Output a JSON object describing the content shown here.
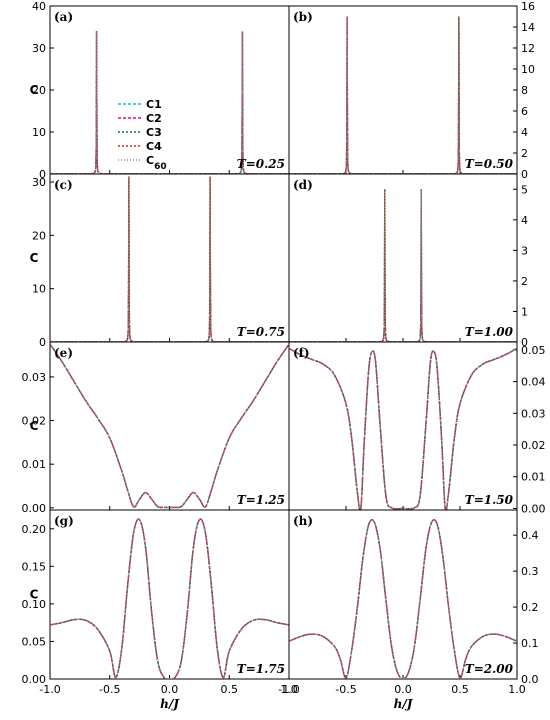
{
  "chart_data": {
    "type": "line",
    "xlabel_parts": [
      "h",
      "/",
      "J"
    ],
    "ylabel": "C",
    "xlim": [
      -1.0,
      1.0
    ],
    "x_ticks": [
      "-1.0",
      "-0.5",
      "0.0",
      "0.5",
      "1.0"
    ],
    "legend": {
      "placement": "panel (a), left-center",
      "entries": [
        {
          "name": "C1",
          "color": "#00bfe6",
          "dash": "3,2"
        },
        {
          "name": "C2",
          "color": "#e6009b",
          "dash": "3,2"
        },
        {
          "name": "C3",
          "color": "#0a7a2a",
          "dash": "2,2"
        },
        {
          "name": "C4",
          "color": "#d42a2a",
          "dash": "2,2"
        },
        {
          "name": "C",
          "subscript": "60",
          "color": "#8a8a8a",
          "dash": "1,2"
        }
      ]
    },
    "panels": [
      {
        "label": "(a)",
        "T": "T=0.25",
        "ylim": [
          0,
          40
        ],
        "yticks": [
          0,
          10,
          20,
          30,
          40
        ],
        "yaxis_side": "left",
        "peaks": [
          {
            "x": -0.61,
            "height": 34
          },
          {
            "x": 0.61,
            "height": 34
          }
        ]
      },
      {
        "label": "(b)",
        "T": "T=0.50",
        "ylim": [
          0,
          16
        ],
        "yticks": [
          0,
          2,
          4,
          6,
          8,
          10,
          12,
          14,
          16
        ],
        "yaxis_side": "right",
        "peaks": [
          {
            "x": -0.49,
            "height": 15
          },
          {
            "x": 0.49,
            "height": 15
          }
        ]
      },
      {
        "label": "(c)",
        "T": "T=0.75",
        "ylim": [
          0,
          31.5
        ],
        "yticks": [
          0,
          10,
          20,
          30
        ],
        "yaxis_side": "left",
        "peaks": [
          {
            "x": -0.34,
            "height": 31
          },
          {
            "x": 0.34,
            "height": 31
          }
        ]
      },
      {
        "label": "(d)",
        "T": "T=1.00",
        "ylim": [
          0,
          5.5
        ],
        "yticks": [
          0,
          1,
          2,
          3,
          4,
          5
        ],
        "yaxis_side": "right",
        "peaks": [
          {
            "x": -0.16,
            "height": 5
          },
          {
            "x": 0.16,
            "height": 5
          }
        ]
      },
      {
        "label": "(e)",
        "T": "T=1.25",
        "ylim": [
          -0.0005,
          0.038
        ],
        "yticks": [
          0.0,
          0.01,
          0.02,
          0.03
        ],
        "ytick_labels": [
          "0.00",
          "0.01",
          "0.02",
          "0.03"
        ],
        "yaxis_side": "left",
        "x": [
          -1.0,
          -0.9,
          -0.8,
          -0.7,
          -0.6,
          -0.5,
          -0.4,
          -0.35,
          -0.3,
          -0.25,
          -0.2,
          -0.15,
          -0.1,
          -0.05,
          0.0,
          0.05,
          0.1,
          0.15,
          0.2,
          0.25,
          0.3,
          0.35,
          0.4,
          0.5,
          0.6,
          0.7,
          0.8,
          0.9,
          1.0
        ],
        "y": [
          0.0375,
          0.0335,
          0.029,
          0.0245,
          0.0205,
          0.016,
          0.0085,
          0.004,
          0.0002,
          0.002,
          0.0035,
          0.002,
          0.0003,
          0.0001,
          0.0001,
          0.0001,
          0.0003,
          0.002,
          0.0035,
          0.002,
          0.0002,
          0.004,
          0.0085,
          0.016,
          0.0205,
          0.0245,
          0.029,
          0.0335,
          0.0375
        ]
      },
      {
        "label": "(f)",
        "T": "T=1.50",
        "ylim": [
          -0.0005,
          0.0525
        ],
        "yticks": [
          0.0,
          0.01,
          0.02,
          0.03,
          0.04,
          0.05
        ],
        "ytick_labels": [
          "0.00",
          "0.01",
          "0.02",
          "0.03",
          "0.04",
          "0.05"
        ],
        "yaxis_side": "right",
        "x": [
          -1.0,
          -0.9,
          -0.8,
          -0.7,
          -0.6,
          -0.5,
          -0.45,
          -0.4,
          -0.37,
          -0.34,
          -0.3,
          -0.27,
          -0.24,
          -0.2,
          -0.15,
          -0.1,
          0.0,
          0.1,
          0.15,
          0.2,
          0.24,
          0.27,
          0.3,
          0.34,
          0.37,
          0.4,
          0.45,
          0.5,
          0.6,
          0.7,
          0.8,
          0.9,
          1.0
        ],
        "y": [
          0.0505,
          0.0485,
          0.047,
          0.0455,
          0.042,
          0.033,
          0.022,
          0.005,
          0.0,
          0.021,
          0.044,
          0.0495,
          0.046,
          0.026,
          0.004,
          0.0002,
          0.0,
          0.0002,
          0.004,
          0.026,
          0.046,
          0.0495,
          0.044,
          0.021,
          0.0,
          0.005,
          0.022,
          0.033,
          0.042,
          0.0455,
          0.047,
          0.0485,
          0.0505
        ]
      },
      {
        "label": "(g)",
        "T": "T=1.75",
        "ylim": [
          0,
          0.225
        ],
        "yticks": [
          0.0,
          0.05,
          0.1,
          0.15,
          0.2
        ],
        "ytick_labels": [
          "0.00",
          "0.05",
          "0.10",
          "0.15",
          "0.20"
        ],
        "yaxis_side": "left",
        "x": [
          -1.0,
          -0.9,
          -0.8,
          -0.7,
          -0.6,
          -0.5,
          -0.45,
          -0.4,
          -0.35,
          -0.3,
          -0.25,
          -0.2,
          -0.15,
          -0.1,
          -0.05,
          0.0,
          0.05,
          0.1,
          0.15,
          0.2,
          0.25,
          0.3,
          0.35,
          0.4,
          0.45,
          0.5,
          0.6,
          0.7,
          0.8,
          0.9,
          1.0
        ],
        "y": [
          0.072,
          0.075,
          0.079,
          0.078,
          0.066,
          0.037,
          0.002,
          0.04,
          0.125,
          0.195,
          0.212,
          0.175,
          0.09,
          0.025,
          0.003,
          0.0,
          0.003,
          0.025,
          0.09,
          0.175,
          0.212,
          0.195,
          0.125,
          0.04,
          0.002,
          0.037,
          0.066,
          0.078,
          0.079,
          0.075,
          0.072
        ]
      },
      {
        "label": "(h)",
        "T": "T=2.00",
        "ylim": [
          0,
          0.47
        ],
        "yticks": [
          0.0,
          0.1,
          0.2,
          0.3,
          0.4
        ],
        "ytick_labels": [
          "0.0",
          "0.1",
          "0.2",
          "0.3",
          "0.4"
        ],
        "yaxis_side": "right",
        "x": [
          -1.0,
          -0.9,
          -0.8,
          -0.7,
          -0.6,
          -0.55,
          -0.5,
          -0.45,
          -0.4,
          -0.35,
          -0.3,
          -0.25,
          -0.2,
          -0.15,
          -0.1,
          -0.05,
          0.0,
          0.05,
          0.1,
          0.15,
          0.2,
          0.25,
          0.3,
          0.35,
          0.4,
          0.45,
          0.5,
          0.55,
          0.6,
          0.7,
          0.8,
          0.9,
          1.0
        ],
        "y": [
          0.105,
          0.118,
          0.125,
          0.118,
          0.09,
          0.055,
          0.003,
          0.08,
          0.2,
          0.34,
          0.43,
          0.435,
          0.36,
          0.22,
          0.09,
          0.02,
          0.0,
          0.02,
          0.09,
          0.22,
          0.36,
          0.435,
          0.43,
          0.34,
          0.2,
          0.08,
          0.003,
          0.055,
          0.09,
          0.118,
          0.125,
          0.118,
          0.105
        ]
      }
    ]
  }
}
